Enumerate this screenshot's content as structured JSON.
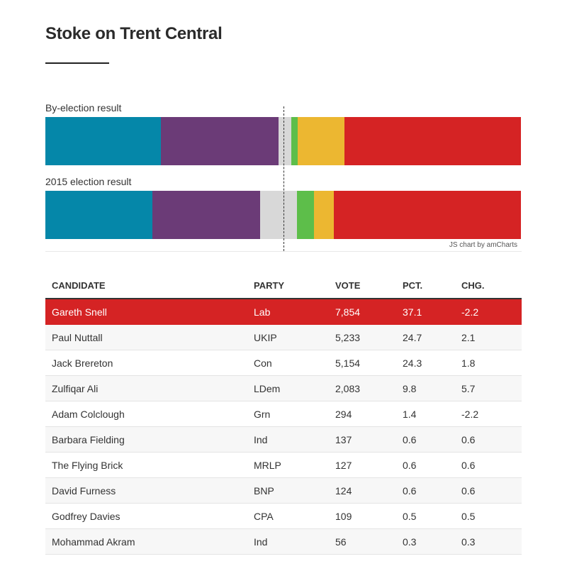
{
  "title": "Stoke on Trent Central",
  "chart_data": {
    "type": "stacked-bar",
    "rows": [
      {
        "label": "By-election result",
        "segments": [
          {
            "party": "Con",
            "pct": 24.3,
            "color": "#0587a9"
          },
          {
            "party": "UKIP",
            "pct": 24.7,
            "color": "#6b3b77"
          },
          {
            "party": "Other",
            "pct": 2.6,
            "color": "#d8d8d8"
          },
          {
            "party": "Grn",
            "pct": 1.4,
            "color": "#5dbe4a"
          },
          {
            "party": "LDem",
            "pct": 9.8,
            "color": "#ecb731"
          },
          {
            "party": "Lab",
            "pct": 37.1,
            "color": "#d52324"
          }
        ]
      },
      {
        "label": "2015 election result",
        "segments": [
          {
            "party": "Con",
            "pct": 22.5,
            "color": "#0587a9"
          },
          {
            "party": "UKIP",
            "pct": 22.6,
            "color": "#6b3b77"
          },
          {
            "party": "Other",
            "pct": 7.7,
            "color": "#d8d8d8"
          },
          {
            "party": "Grn",
            "pct": 3.6,
            "color": "#5dbe4a"
          },
          {
            "party": "LDem",
            "pct": 4.1,
            "color": "#ecb731"
          },
          {
            "party": "Lab",
            "pct": 39.3,
            "color": "#d52324"
          }
        ]
      }
    ],
    "reference_line_pct": 50,
    "credit": "JS chart by amCharts"
  },
  "table": {
    "headers": [
      "CANDIDATE",
      "PARTY",
      "VOTE",
      "PCT.",
      "CHG."
    ],
    "rows": [
      {
        "candidate": "Gareth Snell",
        "party": "Lab",
        "vote": "7,854",
        "pct": "37.1",
        "chg": "-2.2"
      },
      {
        "candidate": "Paul Nuttall",
        "party": "UKIP",
        "vote": "5,233",
        "pct": "24.7",
        "chg": "2.1"
      },
      {
        "candidate": "Jack Brereton",
        "party": "Con",
        "vote": "5,154",
        "pct": "24.3",
        "chg": "1.8"
      },
      {
        "candidate": "Zulfiqar Ali",
        "party": "LDem",
        "vote": "2,083",
        "pct": "9.8",
        "chg": "5.7"
      },
      {
        "candidate": "Adam Colclough",
        "party": "Grn",
        "vote": "294",
        "pct": "1.4",
        "chg": "-2.2"
      },
      {
        "candidate": "Barbara Fielding",
        "party": "Ind",
        "vote": "137",
        "pct": "0.6",
        "chg": "0.6"
      },
      {
        "candidate": "The Flying Brick",
        "party": "MRLP",
        "vote": "127",
        "pct": "0.6",
        "chg": "0.6"
      },
      {
        "candidate": "David Furness",
        "party": "BNP",
        "vote": "124",
        "pct": "0.6",
        "chg": "0.6"
      },
      {
        "candidate": "Godfrey Davies",
        "party": "CPA",
        "vote": "109",
        "pct": "0.5",
        "chg": "0.5"
      },
      {
        "candidate": "Mohammad Akram",
        "party": "Ind",
        "vote": "56",
        "pct": "0.3",
        "chg": "0.3"
      }
    ]
  }
}
